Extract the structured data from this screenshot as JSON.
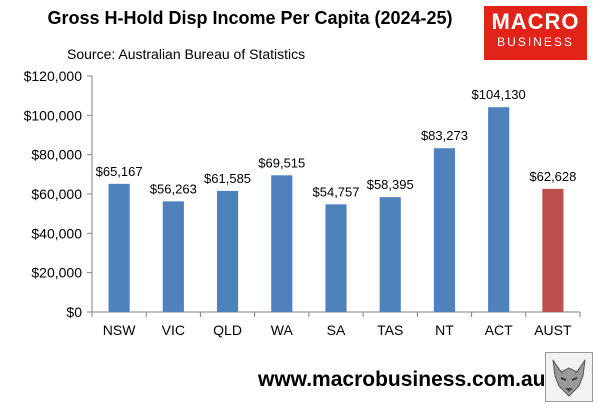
{
  "header": {
    "title": "Gross H-Hold Disp Income Per Capita (2024-25)",
    "subtitle": "Source: Australian Bureau of Statistics"
  },
  "logo": {
    "line1": "MACRO",
    "line2": "BUSINESS"
  },
  "footer": {
    "url": "www.macrobusiness.com.au"
  },
  "colors": {
    "bar": "#4f81bd",
    "highlight": "#c0504d",
    "axis": "#808080"
  },
  "chart_data": {
    "type": "bar",
    "title": "Gross H-Hold Disp Income Per Capita (2024-25)",
    "subtitle": "Source: Australian Bureau of Statistics",
    "categories": [
      "NSW",
      "VIC",
      "QLD",
      "WA",
      "SA",
      "TAS",
      "NT",
      "ACT",
      "AUST"
    ],
    "values": [
      65167,
      56263,
      61585,
      69515,
      54757,
      58395,
      83273,
      104130,
      62628
    ],
    "data_labels": [
      "$65,167",
      "$56,263",
      "$61,585",
      "$69,515",
      "$54,757",
      "$58,395",
      "$83,273",
      "$104,130",
      "$62,628"
    ],
    "highlight_index": 8,
    "ylim": [
      0,
      120000
    ],
    "yticks": [
      0,
      20000,
      40000,
      60000,
      80000,
      100000,
      120000
    ],
    "ytick_labels": [
      "$0",
      "$20,000",
      "$40,000",
      "$60,000",
      "$80,000",
      "$100,000",
      "$120,000"
    ],
    "xlabel": "",
    "ylabel": "",
    "grid": false,
    "legend": "none"
  }
}
